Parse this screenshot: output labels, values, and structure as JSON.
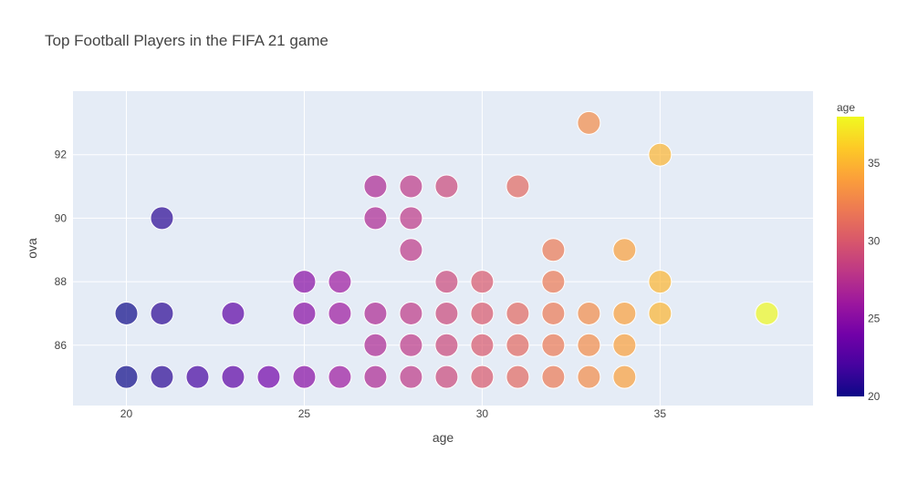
{
  "chart_data": {
    "type": "scatter",
    "title": "Top Football Players in the FIFA 21 game",
    "xlabel": "age",
    "ylabel": "ova",
    "xlim": [
      18.5,
      39.3
    ],
    "ylim": [
      84.1,
      94.0
    ],
    "x_ticks": [
      20,
      25,
      30,
      35
    ],
    "y_ticks": [
      86,
      88,
      90,
      92
    ],
    "grid": true,
    "colorbar": {
      "title": "age",
      "range": [
        20,
        38
      ],
      "ticks": [
        20,
        25,
        30,
        35
      ],
      "colorscale": [
        "#0d0887",
        "#46039f",
        "#7201a8",
        "#9c179e",
        "#bd3786",
        "#d8576b",
        "#ed7953",
        "#fb9f3a",
        "#fdca26",
        "#f0f921"
      ]
    },
    "points": [
      {
        "x": 20,
        "y": 87
      },
      {
        "x": 20,
        "y": 85
      },
      {
        "x": 21,
        "y": 90
      },
      {
        "x": 21,
        "y": 87
      },
      {
        "x": 21,
        "y": 85
      },
      {
        "x": 22,
        "y": 85
      },
      {
        "x": 23,
        "y": 87
      },
      {
        "x": 23,
        "y": 85
      },
      {
        "x": 24,
        "y": 85
      },
      {
        "x": 25,
        "y": 88
      },
      {
        "x": 25,
        "y": 87
      },
      {
        "x": 25,
        "y": 85
      },
      {
        "x": 26,
        "y": 88
      },
      {
        "x": 26,
        "y": 87
      },
      {
        "x": 26,
        "y": 85
      },
      {
        "x": 27,
        "y": 91
      },
      {
        "x": 27,
        "y": 90
      },
      {
        "x": 27,
        "y": 87
      },
      {
        "x": 27,
        "y": 86
      },
      {
        "x": 27,
        "y": 85
      },
      {
        "x": 28,
        "y": 91
      },
      {
        "x": 28,
        "y": 90
      },
      {
        "x": 28,
        "y": 89
      },
      {
        "x": 28,
        "y": 87
      },
      {
        "x": 28,
        "y": 86
      },
      {
        "x": 28,
        "y": 85
      },
      {
        "x": 29,
        "y": 91
      },
      {
        "x": 29,
        "y": 88
      },
      {
        "x": 29,
        "y": 87
      },
      {
        "x": 29,
        "y": 86
      },
      {
        "x": 29,
        "y": 85
      },
      {
        "x": 30,
        "y": 88
      },
      {
        "x": 30,
        "y": 87
      },
      {
        "x": 30,
        "y": 86
      },
      {
        "x": 30,
        "y": 85
      },
      {
        "x": 31,
        "y": 91
      },
      {
        "x": 31,
        "y": 87
      },
      {
        "x": 31,
        "y": 86
      },
      {
        "x": 31,
        "y": 85
      },
      {
        "x": 32,
        "y": 89
      },
      {
        "x": 32,
        "y": 88
      },
      {
        "x": 32,
        "y": 87
      },
      {
        "x": 32,
        "y": 86
      },
      {
        "x": 32,
        "y": 85
      },
      {
        "x": 33,
        "y": 93
      },
      {
        "x": 33,
        "y": 87
      },
      {
        "x": 33,
        "y": 86
      },
      {
        "x": 33,
        "y": 85
      },
      {
        "x": 34,
        "y": 89
      },
      {
        "x": 34,
        "y": 87
      },
      {
        "x": 34,
        "y": 86
      },
      {
        "x": 34,
        "y": 85
      },
      {
        "x": 35,
        "y": 92
      },
      {
        "x": 35,
        "y": 88
      },
      {
        "x": 35,
        "y": 87
      },
      {
        "x": 38,
        "y": 87
      }
    ]
  }
}
